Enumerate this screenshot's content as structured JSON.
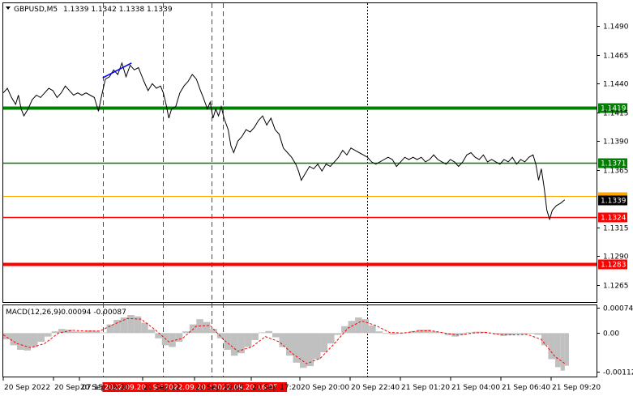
{
  "header": {
    "symbol": "GBPUSD,M5",
    "ohlc": "1.1339 1.1342 1.1338 1.1339"
  },
  "macd_header": {
    "label": "MACD(12,26,9)",
    "values": "-0.00094 -0.00087"
  },
  "colors": {
    "price_line": "#000000",
    "support_green": "#008000",
    "resistance_red": "#ff0000",
    "current_price_box": "#000000",
    "macd_hist": "#c0c0c0",
    "macd_signal": "#ff0000",
    "trend_line": "#0000ff"
  },
  "chart_data": [
    {
      "type": "line",
      "panel": "price",
      "symbol": "GBPUSD",
      "timeframe": "M5",
      "ylim": [
        1.125,
        1.151
      ],
      "y_ticks": [
        "1.1490",
        "1.1465",
        "1.1440",
        "1.1415",
        "1.1390",
        "1.1365",
        "1.1315",
        "1.1290",
        "1.1265"
      ],
      "x_tick_labels": [
        "20 Sep 2022",
        "20 Sep 07:15",
        "20 Sep 09:30",
        "20 Sep 12",
        "20 Sep 16:05",
        "20 Sep 17:20",
        "20 Sep 20:00",
        "20 Sep 22:40",
        "21 Sep 01:20",
        "21 Sep 04:00",
        "21 Sep 06:40",
        "21 Sep 09:20"
      ],
      "x_index_range": [
        0,
        430
      ],
      "series": [
        {
          "values": [
            [
              0,
              1.1432
            ],
            [
              3,
              1.1436
            ],
            [
              6,
              1.1428
            ],
            [
              9,
              1.1422
            ],
            [
              11,
              1.143
            ],
            [
              13,
              1.1418
            ],
            [
              15,
              1.1412
            ],
            [
              18,
              1.1418
            ],
            [
              21,
              1.1426
            ],
            [
              24,
              1.143
            ],
            [
              27,
              1.1428
            ],
            [
              30,
              1.1432
            ],
            [
              33,
              1.1436
            ],
            [
              36,
              1.1434
            ],
            [
              39,
              1.1428
            ],
            [
              42,
              1.1432
            ],
            [
              45,
              1.1438
            ],
            [
              48,
              1.1434
            ],
            [
              51,
              1.143
            ],
            [
              54,
              1.1432
            ],
            [
              57,
              1.143
            ],
            [
              60,
              1.1432
            ],
            [
              63,
              1.143
            ],
            [
              66,
              1.1428
            ],
            [
              69,
              1.1416
            ],
            [
              71,
              1.1428
            ],
            [
              74,
              1.1444
            ],
            [
              77,
              1.1446
            ],
            [
              80,
              1.1452
            ],
            [
              83,
              1.1448
            ],
            [
              86,
              1.1458
            ],
            [
              89,
              1.1446
            ],
            [
              92,
              1.1456
            ],
            [
              95,
              1.1452
            ],
            [
              98,
              1.1454
            ],
            [
              100,
              1.1448
            ],
            [
              102,
              1.1442
            ],
            [
              105,
              1.1434
            ],
            [
              108,
              1.144
            ],
            [
              111,
              1.1436
            ],
            [
              114,
              1.1438
            ],
            [
              116,
              1.1432
            ],
            [
              118,
              1.1422
            ],
            [
              120,
              1.141
            ],
            [
              122,
              1.1418
            ],
            [
              125,
              1.142
            ],
            [
              128,
              1.1432
            ],
            [
              131,
              1.1438
            ],
            [
              134,
              1.1442
            ],
            [
              137,
              1.1448
            ],
            [
              140,
              1.1444
            ],
            [
              143,
              1.1434
            ],
            [
              145,
              1.1428
            ],
            [
              148,
              1.1418
            ],
            [
              150,
              1.1424
            ],
            [
              152,
              1.141
            ],
            [
              154,
              1.1418
            ],
            [
              156,
              1.1412
            ],
            [
              158,
              1.142
            ],
            [
              160,
              1.141
            ],
            [
              163,
              1.14
            ],
            [
              165,
              1.1386
            ],
            [
              167,
              1.138
            ],
            [
              170,
              1.139
            ],
            [
              173,
              1.1394
            ],
            [
              176,
              1.14
            ],
            [
              179,
              1.1398
            ],
            [
              182,
              1.1402
            ],
            [
              185,
              1.1408
            ],
            [
              188,
              1.1412
            ],
            [
              191,
              1.1404
            ],
            [
              194,
              1.141
            ],
            [
              197,
              1.14
            ],
            [
              200,
              1.1396
            ],
            [
              203,
              1.1384
            ],
            [
              206,
              1.138
            ],
            [
              209,
              1.1376
            ],
            [
              212,
              1.137
            ],
            [
              214,
              1.1364
            ],
            [
              216,
              1.1356
            ],
            [
              219,
              1.1362
            ],
            [
              222,
              1.1368
            ],
            [
              225,
              1.1366
            ],
            [
              228,
              1.137
            ],
            [
              231,
              1.1364
            ],
            [
              234,
              1.137
            ],
            [
              237,
              1.1368
            ],
            [
              240,
              1.1372
            ],
            [
              243,
              1.1376
            ],
            [
              246,
              1.1382
            ],
            [
              249,
              1.1378
            ],
            [
              252,
              1.1384
            ],
            [
              255,
              1.1382
            ],
            [
              258,
              1.138
            ],
            [
              261,
              1.1378
            ],
            [
              264,
              1.1376
            ],
            [
              267,
              1.1372
            ],
            [
              270,
              1.137
            ],
            [
              273,
              1.1372
            ],
            [
              276,
              1.1374
            ],
            [
              279,
              1.1376
            ],
            [
              282,
              1.1374
            ],
            [
              285,
              1.1368
            ],
            [
              288,
              1.1372
            ],
            [
              291,
              1.1376
            ],
            [
              294,
              1.1374
            ],
            [
              297,
              1.1376
            ],
            [
              300,
              1.1374
            ],
            [
              303,
              1.1376
            ],
            [
              306,
              1.1372
            ],
            [
              309,
              1.1374
            ],
            [
              312,
              1.1378
            ],
            [
              315,
              1.1374
            ],
            [
              318,
              1.1372
            ],
            [
              321,
              1.137
            ],
            [
              324,
              1.1374
            ],
            [
              327,
              1.1372
            ],
            [
              330,
              1.1368
            ],
            [
              333,
              1.1372
            ],
            [
              336,
              1.1378
            ],
            [
              339,
              1.138
            ],
            [
              342,
              1.1376
            ],
            [
              345,
              1.1374
            ],
            [
              348,
              1.1378
            ],
            [
              351,
              1.1372
            ],
            [
              354,
              1.1374
            ],
            [
              357,
              1.1372
            ],
            [
              360,
              1.137
            ],
            [
              363,
              1.1374
            ],
            [
              366,
              1.1372
            ],
            [
              369,
              1.1376
            ],
            [
              372,
              1.137
            ],
            [
              375,
              1.1374
            ],
            [
              378,
              1.1372
            ],
            [
              381,
              1.1376
            ],
            [
              384,
              1.1378
            ],
            [
              386,
              1.137
            ],
            [
              388,
              1.1356
            ],
            [
              390,
              1.1366
            ],
            [
              392,
              1.135
            ],
            [
              394,
              1.133
            ],
            [
              396,
              1.1322
            ],
            [
              398,
              1.133
            ],
            [
              401,
              1.1334
            ],
            [
              404,
              1.1336
            ],
            [
              407,
              1.1339
            ]
          ]
        }
      ],
      "levels": [
        {
          "value": 1.1419,
          "label": "1.1419",
          "color": "#008000",
          "style": "thick"
        },
        {
          "value": 1.1371,
          "label": "1.1371",
          "color": "#008000",
          "style": "normal"
        },
        {
          "value": 1.1342,
          "label": "",
          "color": "#ffa500",
          "style": "hairline"
        },
        {
          "value": 1.1324,
          "label": "1.1324",
          "color": "#ff0000",
          "style": "normal"
        },
        {
          "value": 1.1283,
          "label": "1.1283",
          "color": "#ff0000",
          "style": "thick"
        }
      ],
      "current_price": "1.1339",
      "trend_line": {
        "from": [
          72,
          1.1445
        ],
        "to": [
          93,
          1.1458
        ]
      },
      "vertical_markers": [
        {
          "x": 72,
          "label": "2022.09.20 09:30",
          "color": "#ff0000"
        },
        {
          "x": 116,
          "label": "2022.09.20 12",
          "color": "#ff0000"
        },
        {
          "x": 151,
          "label": "2022.09.20 16:05",
          "color": "#ff0000"
        },
        {
          "x": 159,
          "label": "",
          "color": "#ff0000"
        },
        {
          "x": 264,
          "label": "",
          "color": "#000000"
        }
      ]
    },
    {
      "type": "bar",
      "panel": "macd",
      "title": "MACD(12,26,9)",
      "ylim": [
        -0.00125,
        0.0008
      ],
      "y_ticks": [
        "0.00074",
        "0.00",
        "-0.00112"
      ],
      "histogram": [
        [
          0,
          -0.00018
        ],
        [
          5,
          -0.00035
        ],
        [
          10,
          -0.00048
        ],
        [
          15,
          -0.0005
        ],
        [
          20,
          -0.0004
        ],
        [
          25,
          -0.00025
        ],
        [
          30,
          -0.0001
        ],
        [
          35,
          5e-05
        ],
        [
          40,
          0.00012
        ],
        [
          45,
          0.0001
        ],
        [
          50,
          5e-05
        ],
        [
          55,
          4e-05
        ],
        [
          60,
          8e-05
        ],
        [
          65,
          6e-05
        ],
        [
          70,
          2e-05
        ],
        [
          75,
          0.00025
        ],
        [
          80,
          0.00038
        ],
        [
          85,
          0.00045
        ],
        [
          90,
          0.00052
        ],
        [
          95,
          0.00048
        ],
        [
          100,
          0.0003
        ],
        [
          105,
          0.0001
        ],
        [
          110,
          -0.00015
        ],
        [
          115,
          -0.00035
        ],
        [
          120,
          -0.0004
        ],
        [
          125,
          -0.00025
        ],
        [
          130,
          5e-05
        ],
        [
          135,
          0.00025
        ],
        [
          140,
          0.0004
        ],
        [
          145,
          0.00032
        ],
        [
          150,
          0.00012
        ],
        [
          155,
          -0.00015
        ],
        [
          160,
          -0.00048
        ],
        [
          165,
          -0.00065
        ],
        [
          170,
          -0.00058
        ],
        [
          175,
          -0.0004
        ],
        [
          180,
          -0.0002
        ],
        [
          185,
          2e-05
        ],
        [
          190,
          6e-05
        ],
        [
          195,
          -0.00012
        ],
        [
          200,
          -0.0004
        ],
        [
          205,
          -0.00065
        ],
        [
          210,
          -0.00085
        ],
        [
          215,
          -0.001
        ],
        [
          220,
          -0.00095
        ],
        [
          225,
          -0.00075
        ],
        [
          230,
          -0.00055
        ],
        [
          235,
          -0.0003
        ],
        [
          240,
          -5e-05
        ],
        [
          245,
          0.0002
        ],
        [
          250,
          0.00035
        ],
        [
          255,
          0.00045
        ],
        [
          260,
          0.0004
        ],
        [
          265,
          0.00022
        ],
        [
          270,
          5e-05
        ],
        [
          275,
          -2e-05
        ],
        [
          280,
          -4e-05
        ],
        [
          285,
          -2e-05
        ],
        [
          290,
          2e-05
        ],
        [
          295,
          6e-05
        ],
        [
          300,
          0.0001
        ],
        [
          305,
          0.0001
        ],
        [
          310,
          5e-05
        ],
        [
          315,
          2e-05
        ],
        [
          320,
          -6e-05
        ],
        [
          325,
          -0.0001
        ],
        [
          330,
          -5e-05
        ],
        [
          335,
          2e-05
        ],
        [
          340,
          4e-05
        ],
        [
          345,
          4e-05
        ],
        [
          350,
          1e-05
        ],
        [
          355,
          -4e-05
        ],
        [
          360,
          -8e-05
        ],
        [
          365,
          -6e-05
        ],
        [
          370,
          -3e-05
        ],
        [
          375,
          -4e-05
        ],
        [
          380,
          -2e-05
        ],
        [
          385,
          -5e-05
        ],
        [
          390,
          -0.00035
        ],
        [
          395,
          -0.00075
        ],
        [
          400,
          -0.00098
        ],
        [
          404,
          -0.00108
        ],
        [
          407,
          -0.00094
        ]
      ],
      "signal": [
        [
          0,
          -5e-05
        ],
        [
          10,
          -0.0003
        ],
        [
          20,
          -0.00042
        ],
        [
          30,
          -0.0003
        ],
        [
          40,
          0.0
        ],
        [
          50,
          8e-05
        ],
        [
          60,
          6e-05
        ],
        [
          70,
          6e-05
        ],
        [
          80,
          0.00025
        ],
        [
          90,
          0.00042
        ],
        [
          100,
          0.0004
        ],
        [
          110,
          0.0001
        ],
        [
          120,
          -0.00025
        ],
        [
          130,
          -0.00015
        ],
        [
          140,
          0.0002
        ],
        [
          150,
          0.00022
        ],
        [
          160,
          -0.0002
        ],
        [
          170,
          -0.00052
        ],
        [
          180,
          -0.0004
        ],
        [
          190,
          -0.0001
        ],
        [
          200,
          -0.00025
        ],
        [
          210,
          -0.0006
        ],
        [
          220,
          -0.00088
        ],
        [
          230,
          -0.00072
        ],
        [
          240,
          -0.0003
        ],
        [
          250,
          0.00015
        ],
        [
          260,
          0.00035
        ],
        [
          270,
          0.00022
        ],
        [
          280,
          2e-05
        ],
        [
          290,
          0.0
        ],
        [
          300,
          6e-05
        ],
        [
          310,
          7e-05
        ],
        [
          320,
          0.0
        ],
        [
          330,
          -6e-05
        ],
        [
          340,
          0.0
        ],
        [
          350,
          2e-05
        ],
        [
          360,
          -4e-05
        ],
        [
          370,
          -5e-05
        ],
        [
          380,
          -4e-05
        ],
        [
          390,
          -0.00018
        ],
        [
          400,
          -0.00068
        ],
        [
          407,
          -0.00087
        ]
      ]
    }
  ]
}
